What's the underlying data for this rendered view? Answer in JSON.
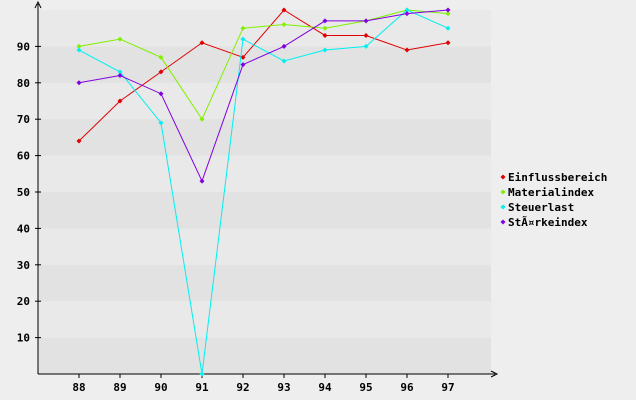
{
  "chart_data": {
    "type": "line",
    "title": "",
    "xlabel": "",
    "ylabel": "",
    "categories": [
      "88",
      "89",
      "90",
      "91",
      "92",
      "93",
      "94",
      "95",
      "96",
      "97"
    ],
    "ylim": [
      0,
      100
    ],
    "yticks": [
      10,
      20,
      30,
      40,
      50,
      60,
      70,
      80,
      90
    ],
    "grid": "alternating horizontal bands",
    "legend_position": "right",
    "series": [
      {
        "name": "Einflussbereich",
        "color": "#e00000",
        "values": [
          64,
          75,
          83,
          91,
          87,
          100,
          93,
          93,
          89,
          91
        ]
      },
      {
        "name": "Materialindex",
        "color": "#80f000",
        "values": [
          90,
          92,
          87,
          70,
          95,
          96,
          95,
          97,
          100,
          99
        ]
      },
      {
        "name": "Steuerlast",
        "color": "#00f0f0",
        "values": [
          89,
          83,
          69,
          0,
          92,
          86,
          89,
          90,
          100,
          95
        ]
      },
      {
        "name": "StÃ¤rkeindex",
        "color": "#8000e0",
        "values": [
          80,
          82,
          77,
          53,
          85,
          90,
          97,
          97,
          99,
          100
        ]
      }
    ]
  }
}
